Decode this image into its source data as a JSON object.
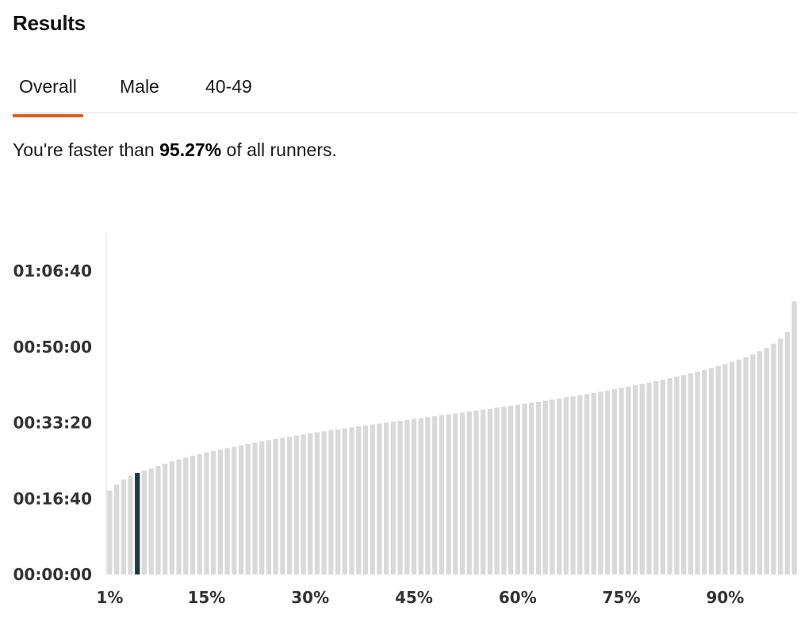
{
  "page": {
    "title": "Results"
  },
  "tabs": [
    {
      "label": "Overall",
      "active": true
    },
    {
      "label": "Male",
      "active": false
    },
    {
      "label": "40-49",
      "active": false
    }
  ],
  "summary": {
    "prefix": "You're faster than ",
    "value": "95.27%",
    "suffix": " of all runners."
  },
  "colors": {
    "accent": "#f05a1a",
    "bar": "#d9d9d9",
    "highlight_bar": "#1f3a3d",
    "axis": "#dddddd"
  },
  "chart_data": {
    "type": "bar",
    "title": "",
    "xlabel": "",
    "ylabel": "",
    "y_unit": "seconds",
    "ylim": [
      0,
      4000
    ],
    "y_ticks": [
      0,
      1000,
      2000,
      3000,
      4000
    ],
    "y_tick_labels": [
      "00:00:00",
      "00:16:40",
      "00:33:20",
      "00:50:00",
      "01:06:40"
    ],
    "x_tick_labels": [
      {
        "percentile": 1,
        "label": "1%"
      },
      {
        "percentile": 15,
        "label": "15%"
      },
      {
        "percentile": 30,
        "label": "30%"
      },
      {
        "percentile": 45,
        "label": "45%"
      },
      {
        "percentile": 60,
        "label": "60%"
      },
      {
        "percentile": 75,
        "label": "75%"
      },
      {
        "percentile": 90,
        "label": "90%"
      }
    ],
    "categories": [
      1,
      2,
      3,
      4,
      5,
      6,
      7,
      8,
      9,
      10,
      11,
      12,
      13,
      14,
      15,
      16,
      17,
      18,
      19,
      20,
      21,
      22,
      23,
      24,
      25,
      26,
      27,
      28,
      29,
      30,
      31,
      32,
      33,
      34,
      35,
      36,
      37,
      38,
      39,
      40,
      41,
      42,
      43,
      44,
      45,
      46,
      47,
      48,
      49,
      50,
      51,
      52,
      53,
      54,
      55,
      56,
      57,
      58,
      59,
      60,
      61,
      62,
      63,
      64,
      65,
      66,
      67,
      68,
      69,
      70,
      71,
      72,
      73,
      74,
      75,
      76,
      77,
      78,
      79,
      80,
      81,
      82,
      83,
      84,
      85,
      86,
      87,
      88,
      89,
      90,
      91,
      92,
      93,
      94,
      95,
      96,
      97,
      98,
      99,
      100
    ],
    "values": [
      1105,
      1185,
      1250,
      1300,
      1338,
      1370,
      1395,
      1430,
      1460,
      1490,
      1515,
      1540,
      1565,
      1587,
      1607,
      1627,
      1647,
      1667,
      1685,
      1703,
      1721,
      1738,
      1754,
      1770,
      1786,
      1801,
      1816,
      1831,
      1845,
      1859,
      1873,
      1887,
      1900,
      1913,
      1926,
      1939,
      1952,
      1964,
      1977,
      1989,
      2001,
      2014,
      2026,
      2038,
      2050,
      2062,
      2074,
      2087,
      2099,
      2111,
      2123,
      2135,
      2148,
      2160,
      2173,
      2185,
      2198,
      2211,
      2224,
      2237,
      2250,
      2264,
      2277,
      2291,
      2305,
      2319,
      2334,
      2348,
      2363,
      2378,
      2394,
      2410,
      2426,
      2442,
      2459,
      2476,
      2494,
      2512,
      2530,
      2549,
      2568,
      2588,
      2608,
      2629,
      2651,
      2673,
      2697,
      2721,
      2746,
      2773,
      2802,
      2833,
      2866,
      2902,
      2942,
      2988,
      3042,
      3108,
      3195,
      3600
    ],
    "highlight_index": 4
  }
}
